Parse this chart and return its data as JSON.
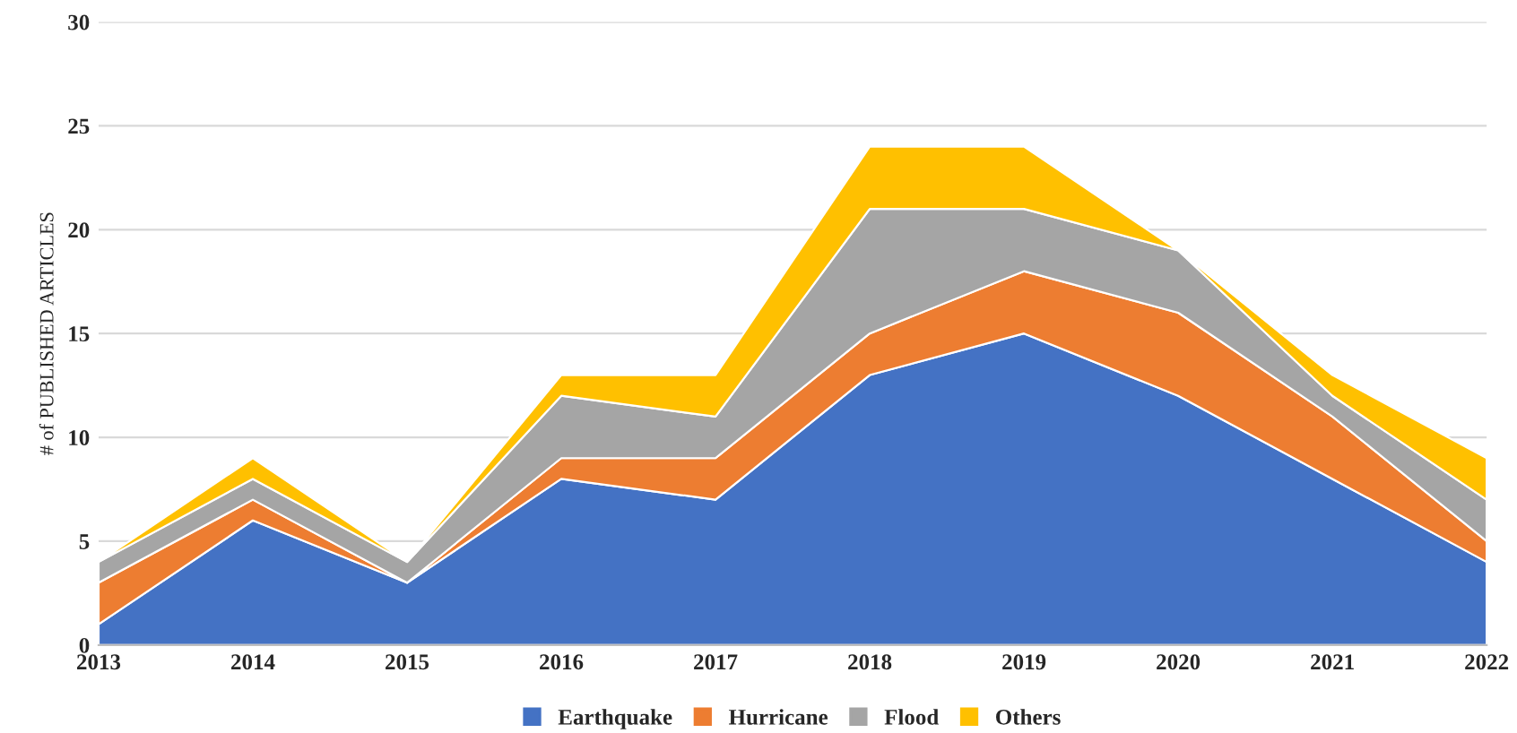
{
  "chart_data": {
    "type": "area",
    "stacked": true,
    "ylabel": "# of PUBLISHED ARTICLES",
    "x": [
      "2013",
      "2014",
      "2015",
      "2016",
      "2017",
      "2018",
      "2019",
      "2020",
      "2021",
      "2022"
    ],
    "xlim": [
      "2013",
      "2022"
    ],
    "xticks": [
      "2013",
      "2014",
      "2015",
      "2016",
      "2017",
      "2018",
      "2019",
      "2020",
      "2021",
      "2022"
    ],
    "ylim": [
      0,
      30
    ],
    "yticks": [
      0,
      5,
      10,
      15,
      20,
      25,
      30
    ],
    "grid": "y",
    "legend": "bottom",
    "series": [
      {
        "name": "Earthquake",
        "color": "#4472c4",
        "values": [
          1,
          6,
          3,
          8,
          7,
          13,
          15,
          12,
          8,
          4
        ]
      },
      {
        "name": "Hurricane",
        "color": "#ed7d31",
        "values": [
          2,
          1,
          0,
          1,
          2,
          2,
          3,
          4,
          3,
          1
        ]
      },
      {
        "name": "Flood",
        "color": "#a5a5a5",
        "values": [
          1,
          1,
          1,
          3,
          2,
          6,
          3,
          3,
          1,
          2
        ]
      },
      {
        "name": "Others",
        "color": "#ffc000",
        "values": [
          0,
          1,
          0,
          1,
          2,
          3,
          3,
          0,
          1,
          2
        ]
      }
    ]
  }
}
